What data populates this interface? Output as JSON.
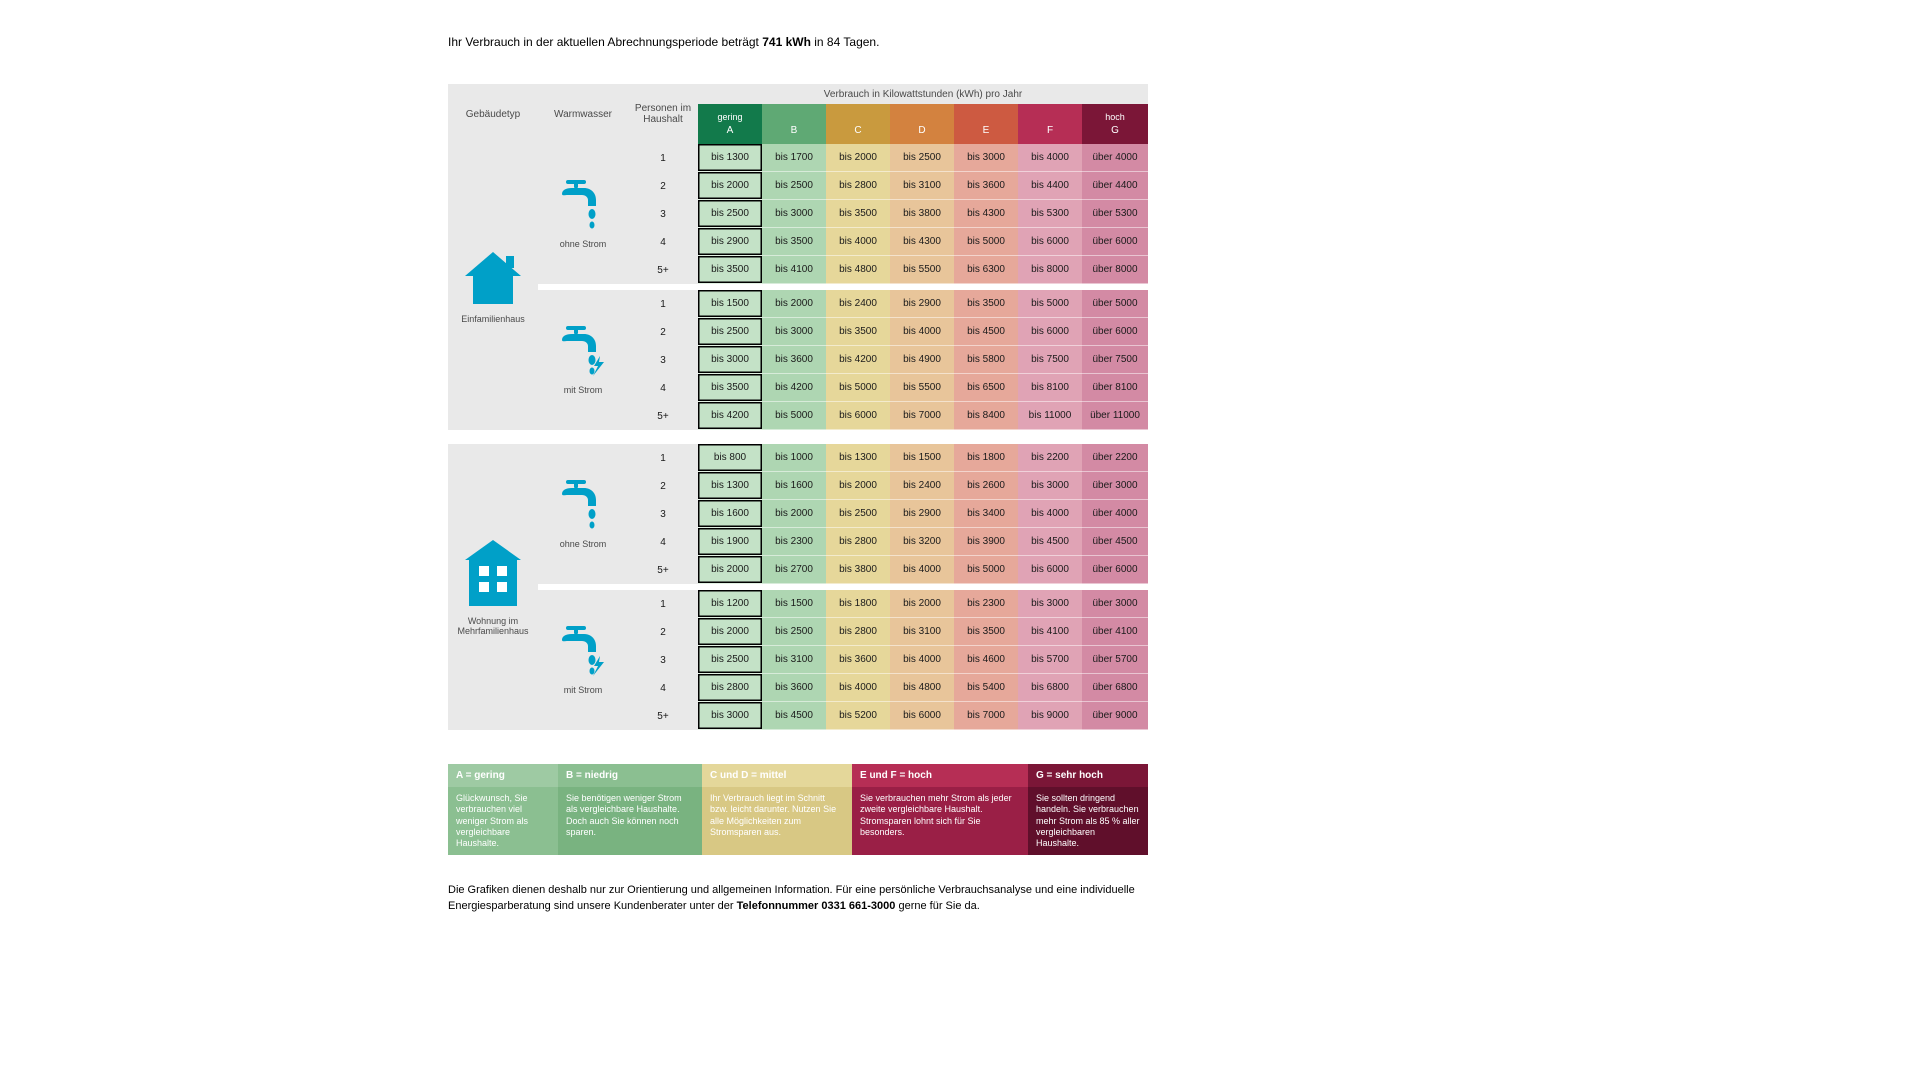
{
  "intro": {
    "prefix": "Ihr Verbrauch in der aktuellen Abrechnungsperiode beträgt ",
    "value": "741 kWh",
    "mid": " in ",
    "days": "84",
    "suffix": " Tagen."
  },
  "headers": {
    "building": "Gebäudetyp",
    "ww": "Warmwasser",
    "persons": "Personen im Haushalt",
    "super": "Verbrauch in Kilowattstunden (kWh) pro Jahr"
  },
  "ratings": [
    {
      "letter": "A",
      "label": "gering",
      "bg": "#127a4b",
      "fg": "#ffffff"
    },
    {
      "letter": "B",
      "label": "",
      "bg": "#5fa974",
      "fg": "#ffffff"
    },
    {
      "letter": "C",
      "label": "",
      "bg": "#c99a3e",
      "fg": "#ffffff"
    },
    {
      "letter": "D",
      "label": "",
      "bg": "#d3823f",
      "fg": "#ffffff"
    },
    {
      "letter": "E",
      "label": "",
      "bg": "#cd5a41",
      "fg": "#ffffff"
    },
    {
      "letter": "F",
      "label": "",
      "bg": "#b62e55",
      "fg": "#ffffff"
    },
    {
      "letter": "G",
      "label": "hoch",
      "bg": "#7b1637",
      "fg": "#ffffff"
    }
  ],
  "cell_colors": [
    "#c4e2c7",
    "#aed6b2",
    "#e6d79a",
    "#e8c59a",
    "#e6a89a",
    "#e0a3b5",
    "#d38aa4"
  ],
  "persons_labels": [
    "1",
    "2",
    "3",
    "4",
    "5+"
  ],
  "ww_labels": {
    "ohne": "ohne Strom",
    "mit": "mit Strom"
  },
  "building_labels": {
    "efh": "Einfamilienhaus",
    "mfh": "Wohnung im Mehrfamilienhaus"
  },
  "sections": [
    {
      "building": "efh",
      "groups": [
        {
          "ww": "ohne",
          "rows": [
            [
              "bis 1300",
              "bis 1700",
              "bis 2000",
              "bis 2500",
              "bis 3000",
              "bis 4000",
              "über 4000"
            ],
            [
              "bis 2000",
              "bis 2500",
              "bis 2800",
              "bis 3100",
              "bis 3600",
              "bis 4400",
              "über 4400"
            ],
            [
              "bis 2500",
              "bis 3000",
              "bis 3500",
              "bis 3800",
              "bis 4300",
              "bis 5300",
              "über 5300"
            ],
            [
              "bis 2900",
              "bis 3500",
              "bis 4000",
              "bis 4300",
              "bis 5000",
              "bis 6000",
              "über 6000"
            ],
            [
              "bis 3500",
              "bis 4100",
              "bis 4800",
              "bis 5500",
              "bis 6300",
              "bis 8000",
              "über 8000"
            ]
          ]
        },
        {
          "ww": "mit",
          "rows": [
            [
              "bis 1500",
              "bis 2000",
              "bis 2400",
              "bis 2900",
              "bis 3500",
              "bis 5000",
              "über 5000"
            ],
            [
              "bis 2500",
              "bis 3000",
              "bis 3500",
              "bis 4000",
              "bis 4500",
              "bis 6000",
              "über 6000"
            ],
            [
              "bis 3000",
              "bis 3600",
              "bis 4200",
              "bis 4900",
              "bis 5800",
              "bis 7500",
              "über 7500"
            ],
            [
              "bis 3500",
              "bis 4200",
              "bis 5000",
              "bis 5500",
              "bis 6500",
              "bis 8100",
              "über 8100"
            ],
            [
              "bis 4200",
              "bis 5000",
              "bis 6000",
              "bis 7000",
              "bis 8400",
              "bis 11000",
              "über 11000"
            ]
          ]
        }
      ]
    },
    {
      "building": "mfh",
      "groups": [
        {
          "ww": "ohne",
          "rows": [
            [
              "bis 800",
              "bis 1000",
              "bis 1300",
              "bis 1500",
              "bis 1800",
              "bis 2200",
              "über 2200"
            ],
            [
              "bis 1300",
              "bis 1600",
              "bis 2000",
              "bis 2400",
              "bis 2600",
              "bis 3000",
              "über 3000"
            ],
            [
              "bis 1600",
              "bis 2000",
              "bis 2500",
              "bis 2900",
              "bis 3400",
              "bis 4000",
              "über 4000"
            ],
            [
              "bis 1900",
              "bis 2300",
              "bis 2800",
              "bis 3200",
              "bis 3900",
              "bis 4500",
              "über 4500"
            ],
            [
              "bis 2000",
              "bis 2700",
              "bis 3800",
              "bis 4000",
              "bis 5000",
              "bis 6000",
              "über 6000"
            ]
          ]
        },
        {
          "ww": "mit",
          "rows": [
            [
              "bis 1200",
              "bis 1500",
              "bis 1800",
              "bis 2000",
              "bis 2300",
              "bis 3000",
              "über 3000"
            ],
            [
              "bis 2000",
              "bis 2500",
              "bis 2800",
              "bis 3100",
              "bis 3500",
              "bis 4100",
              "über 4100"
            ],
            [
              "bis 2500",
              "bis 3100",
              "bis 3600",
              "bis 4000",
              "bis 4600",
              "bis 5700",
              "über 5700"
            ],
            [
              "bis 2800",
              "bis 3600",
              "bis 4000",
              "bis 4800",
              "bis 5400",
              "bis 6800",
              "über 6800"
            ],
            [
              "bis 3000",
              "bis 4500",
              "bis 5200",
              "bis 6000",
              "bis 7000",
              "bis 9000",
              "über 9000"
            ]
          ]
        }
      ]
    }
  ],
  "legend": [
    {
      "head": "A = gering",
      "head_bg": "#9ecaa3",
      "txt": "Glückwunsch, Sie verbrauchen viel weniger Strom als vergleichbare Haushalte.",
      "txt_bg": "#8bbf91",
      "fg": "light"
    },
    {
      "head": "B = niedrig",
      "head_bg": "#8bbf91",
      "txt": "Sie benötigen weniger Strom als vergleichbare Haushalte. Doch auch Sie können noch sparen.",
      "txt_bg": "#79b380",
      "fg": "light"
    },
    {
      "head": "C und D = mittel",
      "head_bg": "#e4d79a",
      "txt": "Ihr Verbrauch liegt im Schnitt bzw. leicht darunter. Nutzen Sie alle Möglichkeiten zum Stromsparen aus.",
      "txt_bg": "#d8c884",
      "fg": "light"
    },
    {
      "head": "E und F = hoch",
      "head_bg": "#b62e55",
      "txt": "Sie verbrauchen mehr Strom als jeder zweite vergleichbare Haushalt. Stromsparen lohnt sich für Sie besonders.",
      "txt_bg": "#9a1f46",
      "fg": "light"
    },
    {
      "head": "G = sehr hoch",
      "head_bg": "#7b1637",
      "txt": "Sie sollten dringend handeln. Sie verbrauchen mehr Strom als 85 % aller vergleichbaren Haushalte.",
      "txt_bg": "#600f2b",
      "fg": "light"
    }
  ],
  "footer": {
    "t1": "Die Grafiken dienen deshalb nur zur Orientierung und allgemeinen Information. Für eine persönliche Verbrauchsanalyse und eine individuelle Energiesparberatung sind unsere Kundenberater unter der ",
    "phone": "Telefonnummer 0331 661-3000",
    "t2": " gerne für Sie da."
  },
  "icon_color": "#00a0c8"
}
